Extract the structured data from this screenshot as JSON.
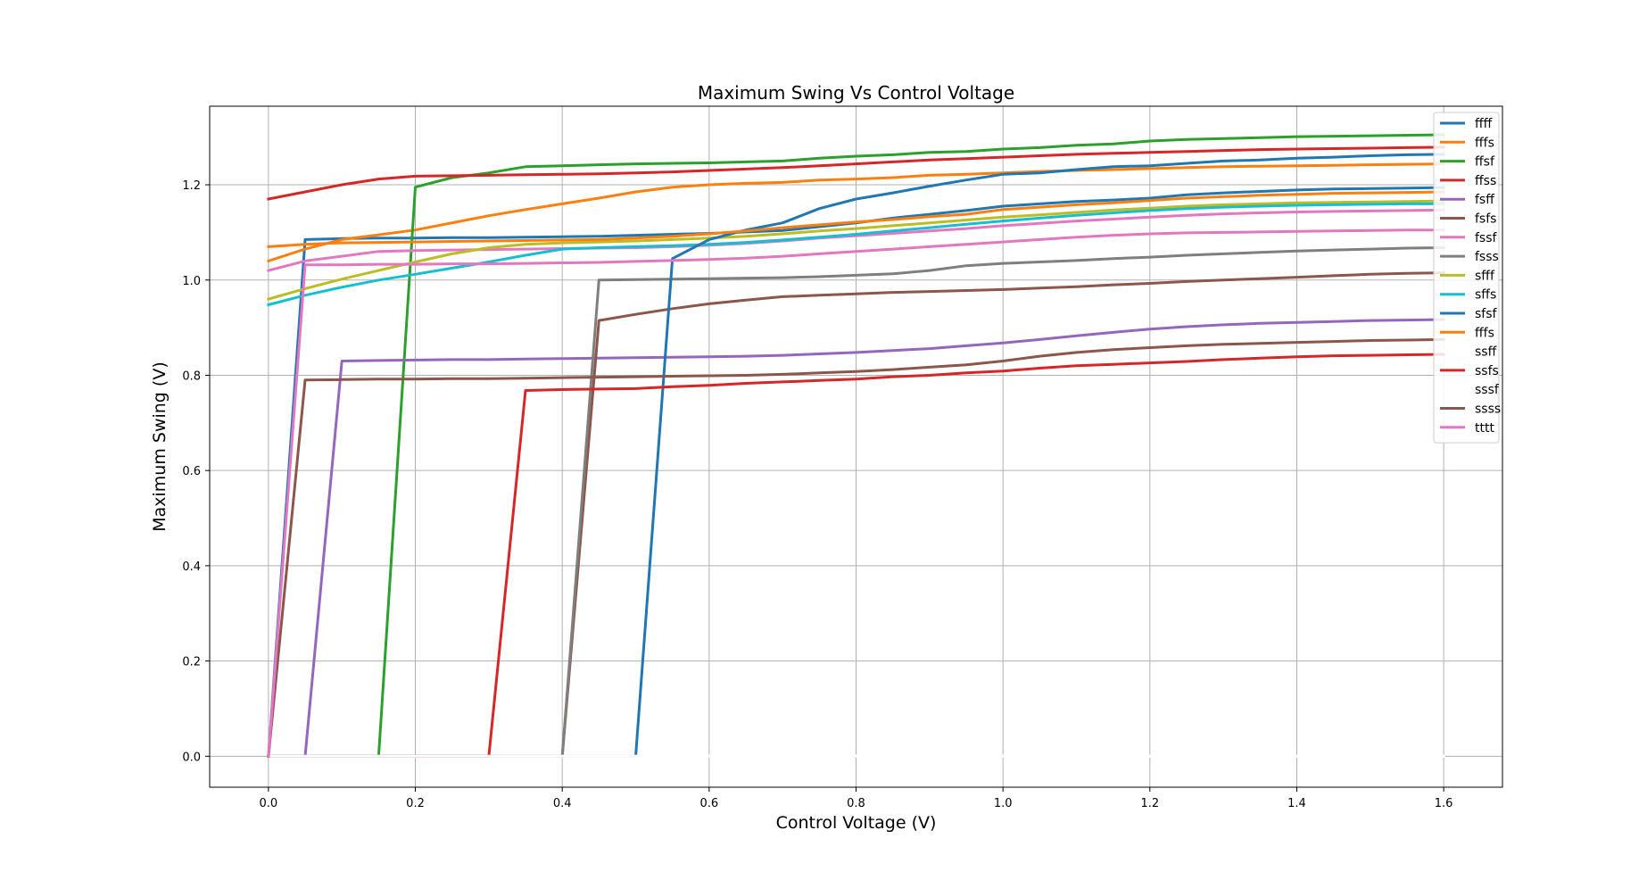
{
  "chart_data": {
    "type": "line",
    "title": "Maximum Swing Vs Control Voltage",
    "xlabel": "Control Voltage (V)",
    "ylabel": "Maximum Swing (V)",
    "xlim": [
      -0.08,
      1.68
    ],
    "ylim": [
      -0.065,
      1.365
    ],
    "xticks": [
      "0.0",
      "0.2",
      "0.4",
      "0.6",
      "0.8",
      "1.0",
      "1.2",
      "1.4",
      "1.6"
    ],
    "yticks": [
      "0.0",
      "0.2",
      "0.4",
      "0.6",
      "0.8",
      "1.0",
      "1.2"
    ],
    "grid": true,
    "legend_position": "top-right",
    "x": [
      0.0,
      0.05,
      0.1,
      0.15,
      0.2,
      0.25,
      0.3,
      0.35,
      0.4,
      0.45,
      0.5,
      0.55,
      0.6,
      0.65,
      0.7,
      0.75,
      0.8,
      0.85,
      0.9,
      0.95,
      1.0,
      1.05,
      1.1,
      1.15,
      1.2,
      1.25,
      1.3,
      1.35,
      1.4,
      1.45,
      1.5,
      1.55,
      1.6
    ],
    "series": [
      {
        "name": "ffff",
        "color": "#1f77b4",
        "values": [
          0,
          1.085,
          1.087,
          1.088,
          1.088,
          1.089,
          1.089,
          1.09,
          1.091,
          1.092,
          1.094,
          1.096,
          1.098,
          1.101,
          1.104,
          1.112,
          1.12,
          1.13,
          1.138,
          1.146,
          1.155,
          1.16,
          1.165,
          1.168,
          1.172,
          1.179,
          1.183,
          1.186,
          1.189,
          1.191,
          1.192,
          1.193,
          1.194
        ]
      },
      {
        "name": "fffs",
        "color": "#ff7f0e",
        "values": [
          1.04,
          1.065,
          1.085,
          1.095,
          1.105,
          1.12,
          1.135,
          1.148,
          1.16,
          1.172,
          1.185,
          1.195,
          1.2,
          1.203,
          1.205,
          1.21,
          1.212,
          1.215,
          1.22,
          1.222,
          1.225,
          1.228,
          1.23,
          1.232,
          1.234,
          1.236,
          1.238,
          1.239,
          1.24,
          1.241,
          1.242,
          1.243,
          1.244
        ]
      },
      {
        "name": "ffsf",
        "color": "#2ca02c",
        "values": [
          0,
          0,
          0,
          0,
          1.195,
          1.215,
          1.225,
          1.238,
          1.24,
          1.242,
          1.244,
          1.245,
          1.246,
          1.248,
          1.25,
          1.256,
          1.26,
          1.263,
          1.268,
          1.27,
          1.275,
          1.278,
          1.283,
          1.286,
          1.292,
          1.295,
          1.297,
          1.299,
          1.301,
          1.302,
          1.303,
          1.304,
          1.305
        ]
      },
      {
        "name": "ffss",
        "color": "#d62728",
        "values": [
          1.17,
          1.185,
          1.2,
          1.212,
          1.218,
          1.219,
          1.22,
          1.221,
          1.222,
          1.223,
          1.225,
          1.227,
          1.23,
          1.233,
          1.236,
          1.24,
          1.244,
          1.248,
          1.252,
          1.255,
          1.258,
          1.261,
          1.264,
          1.266,
          1.268,
          1.27,
          1.272,
          1.274,
          1.275,
          1.276,
          1.277,
          1.278,
          1.279
        ]
      },
      {
        "name": "fsff",
        "color": "#9467bd",
        "values": [
          0,
          0,
          0.83,
          0.831,
          0.832,
          0.833,
          0.833,
          0.834,
          0.835,
          0.836,
          0.837,
          0.838,
          0.839,
          0.84,
          0.842,
          0.845,
          0.848,
          0.852,
          0.856,
          0.862,
          0.868,
          0.875,
          0.883,
          0.89,
          0.897,
          0.902,
          0.906,
          0.909,
          0.911,
          0.913,
          0.915,
          0.916,
          0.917
        ]
      },
      {
        "name": "fsfs",
        "color": "#8c564b",
        "values": [
          0,
          0,
          0,
          0,
          0,
          0,
          0,
          0,
          0,
          0.915,
          0.928,
          0.94,
          0.95,
          0.958,
          0.965,
          0.968,
          0.971,
          0.974,
          0.976,
          0.978,
          0.98,
          0.983,
          0.986,
          0.99,
          0.993,
          0.997,
          1.0,
          1.003,
          1.006,
          1.009,
          1.012,
          1.014,
          1.015
        ]
      },
      {
        "name": "fssf",
        "color": "#e377c2",
        "values": [
          1.02,
          1.04,
          1.05,
          1.06,
          1.062,
          1.063,
          1.064,
          1.065,
          1.066,
          1.067,
          1.068,
          1.07,
          1.073,
          1.077,
          1.082,
          1.088,
          1.093,
          1.098,
          1.103,
          1.108,
          1.114,
          1.119,
          1.124,
          1.128,
          1.132,
          1.136,
          1.139,
          1.141,
          1.143,
          1.144,
          1.145,
          1.146,
          1.147
        ]
      },
      {
        "name": "fsss",
        "color": "#7f7f7f",
        "values": [
          0,
          0,
          0,
          0,
          0,
          0,
          0,
          0,
          0,
          1.0,
          1.001,
          1.002,
          1.003,
          1.004,
          1.005,
          1.007,
          1.01,
          1.013,
          1.02,
          1.03,
          1.035,
          1.038,
          1.041,
          1.045,
          1.048,
          1.052,
          1.055,
          1.058,
          1.061,
          1.063,
          1.065,
          1.067,
          1.068
        ]
      },
      {
        "name": "sfff",
        "color": "#bcbd22",
        "values": [
          0.96,
          0.982,
          1.002,
          1.02,
          1.038,
          1.055,
          1.068,
          1.075,
          1.078,
          1.08,
          1.082,
          1.085,
          1.088,
          1.092,
          1.097,
          1.103,
          1.108,
          1.114,
          1.12,
          1.126,
          1.132,
          1.137,
          1.142,
          1.147,
          1.151,
          1.155,
          1.158,
          1.16,
          1.162,
          1.163,
          1.164,
          1.165,
          1.166
        ]
      },
      {
        "name": "sffs",
        "color": "#17becf",
        "values": [
          0.948,
          0.968,
          0.985,
          1.0,
          1.012,
          1.025,
          1.038,
          1.052,
          1.065,
          1.068,
          1.07,
          1.072,
          1.075,
          1.079,
          1.084,
          1.09,
          1.096,
          1.103,
          1.11,
          1.117,
          1.124,
          1.13,
          1.136,
          1.141,
          1.146,
          1.15,
          1.153,
          1.155,
          1.157,
          1.158,
          1.159,
          1.16,
          1.16
        ]
      },
      {
        "name": "sfsf",
        "color": "#1f77b4",
        "values": [
          0,
          0,
          0,
          0,
          0,
          0,
          0,
          0,
          0,
          0,
          0,
          1.045,
          1.085,
          1.105,
          1.12,
          1.15,
          1.17,
          1.183,
          1.197,
          1.21,
          1.222,
          1.225,
          1.232,
          1.238,
          1.24,
          1.245,
          1.25,
          1.252,
          1.256,
          1.258,
          1.261,
          1.263,
          1.264
        ]
      },
      {
        "name": "fffs",
        "color": "#ff7f0e",
        "values": [
          1.07,
          1.075,
          1.078,
          1.079,
          1.08,
          1.081,
          1.082,
          1.083,
          1.084,
          1.085,
          1.088,
          1.092,
          1.097,
          1.103,
          1.11,
          1.116,
          1.122,
          1.127,
          1.133,
          1.138,
          1.148,
          1.153,
          1.158,
          1.162,
          1.167,
          1.172,
          1.175,
          1.178,
          1.18,
          1.182,
          1.183,
          1.184,
          1.185
        ]
      },
      {
        "name": "ssff",
        "color": "#ffffff",
        "values": [
          0,
          0,
          0,
          0,
          0,
          0,
          0,
          0,
          0,
          0,
          0,
          0,
          0,
          0,
          0,
          0,
          0,
          0,
          0,
          0,
          0,
          0,
          0,
          0,
          0,
          0,
          0,
          0,
          0,
          0,
          0,
          0,
          0
        ]
      },
      {
        "name": "ssfs",
        "color": "#d62728",
        "values": [
          0,
          0,
          0,
          0,
          0,
          0,
          0,
          0.768,
          0.77,
          0.771,
          0.772,
          0.776,
          0.779,
          0.783,
          0.786,
          0.789,
          0.792,
          0.797,
          0.8,
          0.805,
          0.809,
          0.815,
          0.82,
          0.823,
          0.826,
          0.829,
          0.833,
          0.836,
          0.839,
          0.841,
          0.842,
          0.843,
          0.844
        ]
      },
      {
        "name": "sssf",
        "color": "#ffffff",
        "values": [
          0,
          0,
          0,
          0,
          0,
          0,
          0,
          0,
          0,
          0,
          0,
          0,
          0,
          0,
          0,
          0,
          0,
          0,
          0,
          0,
          0,
          0,
          0,
          0,
          0,
          0,
          0,
          0,
          0,
          0,
          0,
          0,
          0
        ]
      },
      {
        "name": "ssss",
        "color": "#8c564b",
        "values": [
          0,
          0.79,
          0.791,
          0.792,
          0.792,
          0.793,
          0.793,
          0.794,
          0.795,
          0.796,
          0.797,
          0.798,
          0.799,
          0.8,
          0.802,
          0.805,
          0.808,
          0.812,
          0.817,
          0.822,
          0.83,
          0.84,
          0.848,
          0.854,
          0.858,
          0.862,
          0.865,
          0.867,
          0.869,
          0.871,
          0.873,
          0.874,
          0.875
        ]
      },
      {
        "name": "tttt",
        "color": "#e377c2",
        "values": [
          0,
          1.032,
          1.032,
          1.033,
          1.033,
          1.034,
          1.034,
          1.035,
          1.036,
          1.037,
          1.039,
          1.041,
          1.043,
          1.046,
          1.05,
          1.055,
          1.06,
          1.065,
          1.07,
          1.075,
          1.08,
          1.085,
          1.09,
          1.094,
          1.097,
          1.099,
          1.1,
          1.101,
          1.102,
          1.103,
          1.104,
          1.105,
          1.105
        ]
      }
    ]
  }
}
